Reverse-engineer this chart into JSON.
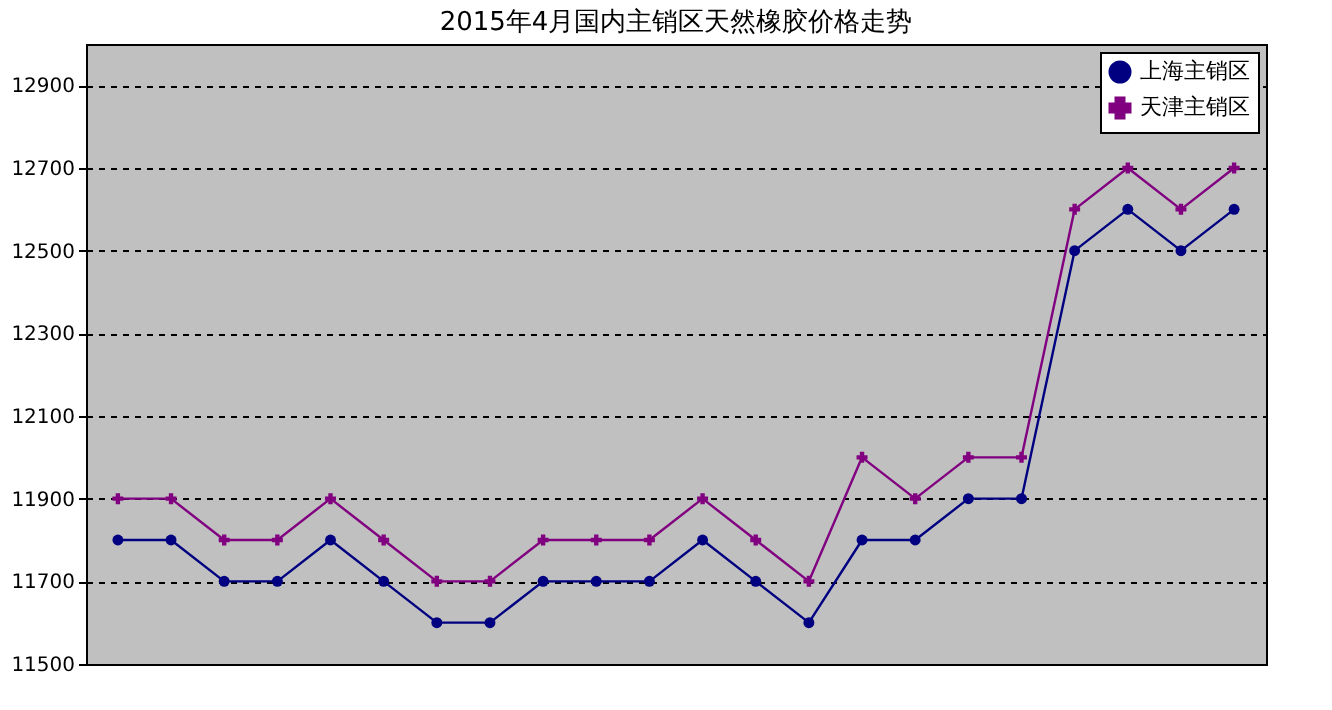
{
  "chart_data": {
    "type": "line",
    "title": "2015年4月国内主销区天然橡胶价格走势",
    "categories": [
      null,
      null,
      null,
      null,
      null,
      null,
      null,
      null,
      null,
      null,
      null,
      null,
      null,
      null,
      null,
      null,
      null,
      null,
      null,
      null,
      null,
      null
    ],
    "series": [
      {
        "name": "上海主销区",
        "color": "#000080",
        "marker": "circle",
        "values": [
          11800,
          11800,
          11700,
          11700,
          11800,
          11700,
          11600,
          11600,
          11700,
          11700,
          11700,
          11800,
          11700,
          11600,
          11800,
          11800,
          11900,
          11900,
          12500,
          12600,
          12500,
          12600
        ]
      },
      {
        "name": "天津主销区",
        "color": "#800080",
        "marker": "cross",
        "values": [
          11900,
          11900,
          11800,
          11800,
          11900,
          11800,
          11700,
          11700,
          11800,
          11800,
          11800,
          11900,
          11800,
          11700,
          12000,
          11900,
          12000,
          12000,
          12600,
          12700,
          12600,
          12700
        ]
      }
    ],
    "ylim": [
      11500,
      13000
    ],
    "yticks": [
      11500,
      11700,
      11900,
      12100,
      12300,
      12500,
      12700,
      12900
    ],
    "grid": "y",
    "legend": "top right",
    "line_style": "solid"
  }
}
